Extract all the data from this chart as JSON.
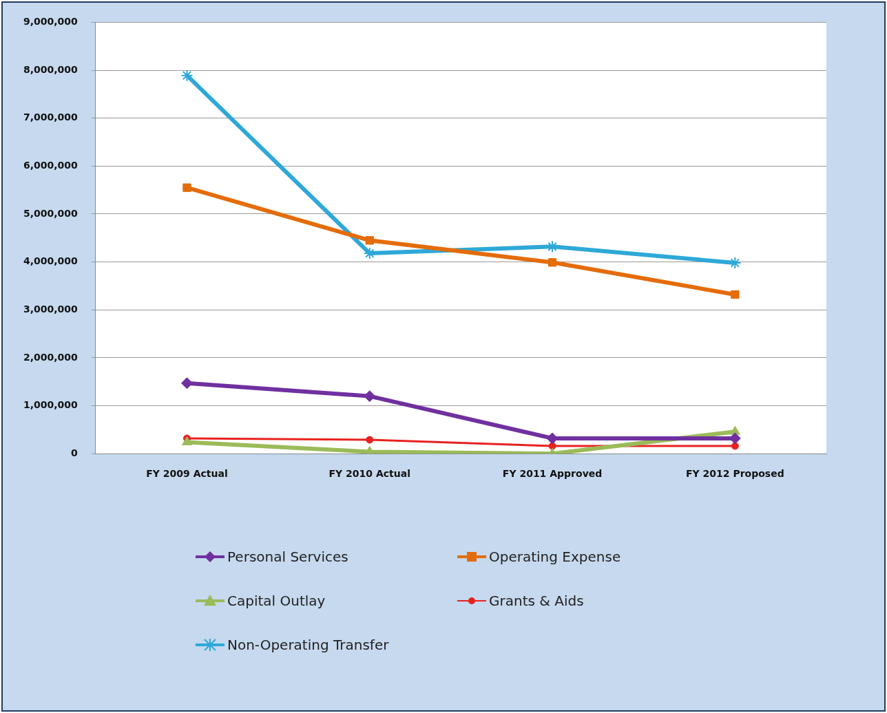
{
  "chart_data": {
    "type": "line",
    "categories": [
      "FY 2009 Actual",
      "FY 2010 Actual",
      "FY 2011 Approved",
      "FY 2012 Proposed"
    ],
    "ylim": [
      0,
      9000000
    ],
    "yticks": [
      {
        "value": 0,
        "label": "0"
      },
      {
        "value": 1000000,
        "label": "1,000,000"
      },
      {
        "value": 2000000,
        "label": "2,000,000"
      },
      {
        "value": 3000000,
        "label": "3,000,000"
      },
      {
        "value": 4000000,
        "label": "4,000,000"
      },
      {
        "value": 5000000,
        "label": "5,000,000"
      },
      {
        "value": 6000000,
        "label": "6,000,000"
      },
      {
        "value": 7000000,
        "label": "7,000,000"
      },
      {
        "value": 8000000,
        "label": "8,000,000"
      },
      {
        "value": 9000000,
        "label": "9,000,000"
      }
    ],
    "grid": "y",
    "legend": "bottom",
    "series": [
      {
        "name": "Personal Services",
        "color": "#7030a0",
        "marker": "diamond",
        "values": [
          1470000,
          1200000,
          320000,
          320000
        ]
      },
      {
        "name": "Operating Expense",
        "color": "#e46c0a",
        "marker": "square",
        "values": [
          5550000,
          4450000,
          3990000,
          3320000
        ]
      },
      {
        "name": "Capital Outlay",
        "color": "#9bbb59",
        "marker": "triangle",
        "values": [
          240000,
          40000,
          0,
          460000
        ]
      },
      {
        "name": "Grants & Aids",
        "color": "#e8211f",
        "marker": "circle",
        "values": [
          320000,
          290000,
          160000,
          160000
        ]
      },
      {
        "name": "Non-Operating Transfer",
        "color": "#2ea8d8",
        "marker": "cross",
        "values": [
          7890000,
          4180000,
          4320000,
          3980000
        ]
      }
    ]
  }
}
